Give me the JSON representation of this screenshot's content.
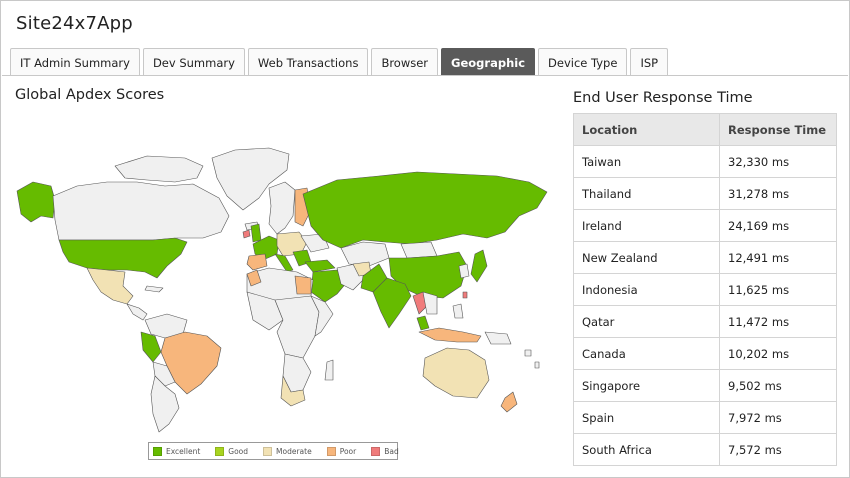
{
  "app": {
    "title": "Site24x7App"
  },
  "tabs": [
    {
      "label": "IT Admin Summary",
      "active": false
    },
    {
      "label": "Dev Summary",
      "active": false
    },
    {
      "label": "Web Transactions",
      "active": false
    },
    {
      "label": "Browser",
      "active": false
    },
    {
      "label": "Geographic",
      "active": true
    },
    {
      "label": "Device Type",
      "active": false
    },
    {
      "label": "ISP",
      "active": false
    }
  ],
  "map": {
    "title": "Global Apdex Scores",
    "colors": {
      "excellent": "#66bb00",
      "good": "#a8d420",
      "moderate": "#f2e2b4",
      "poor": "#f7b67c",
      "bad": "#f07b7b",
      "no_data": "#f0f0f0",
      "border": "#555555"
    },
    "legend": [
      {
        "label": "Excellent",
        "color": "#66bb00"
      },
      {
        "label": "Good",
        "color": "#a8d420"
      },
      {
        "label": "Moderate",
        "color": "#f2e2b4"
      },
      {
        "label": "Poor",
        "color": "#f7b67c"
      },
      {
        "label": "Bad",
        "color": "#f07b7b"
      }
    ]
  },
  "response": {
    "title": "End User Response Time",
    "columns": [
      "Location",
      "Response Time"
    ],
    "rows": [
      {
        "location": "Taiwan",
        "time": "32,330 ms"
      },
      {
        "location": "Thailand",
        "time": "31,278 ms"
      },
      {
        "location": "Ireland",
        "time": "24,169 ms"
      },
      {
        "location": "New Zealand",
        "time": "12,491 ms"
      },
      {
        "location": "Indonesia",
        "time": "11,625 ms"
      },
      {
        "location": "Qatar",
        "time": "11,472 ms"
      },
      {
        "location": "Canada",
        "time": "10,202 ms"
      },
      {
        "location": "Singapore",
        "time": "9,502 ms"
      },
      {
        "location": "Spain",
        "time": "7,972 ms"
      },
      {
        "location": "South Africa",
        "time": "7,572 ms"
      }
    ]
  }
}
